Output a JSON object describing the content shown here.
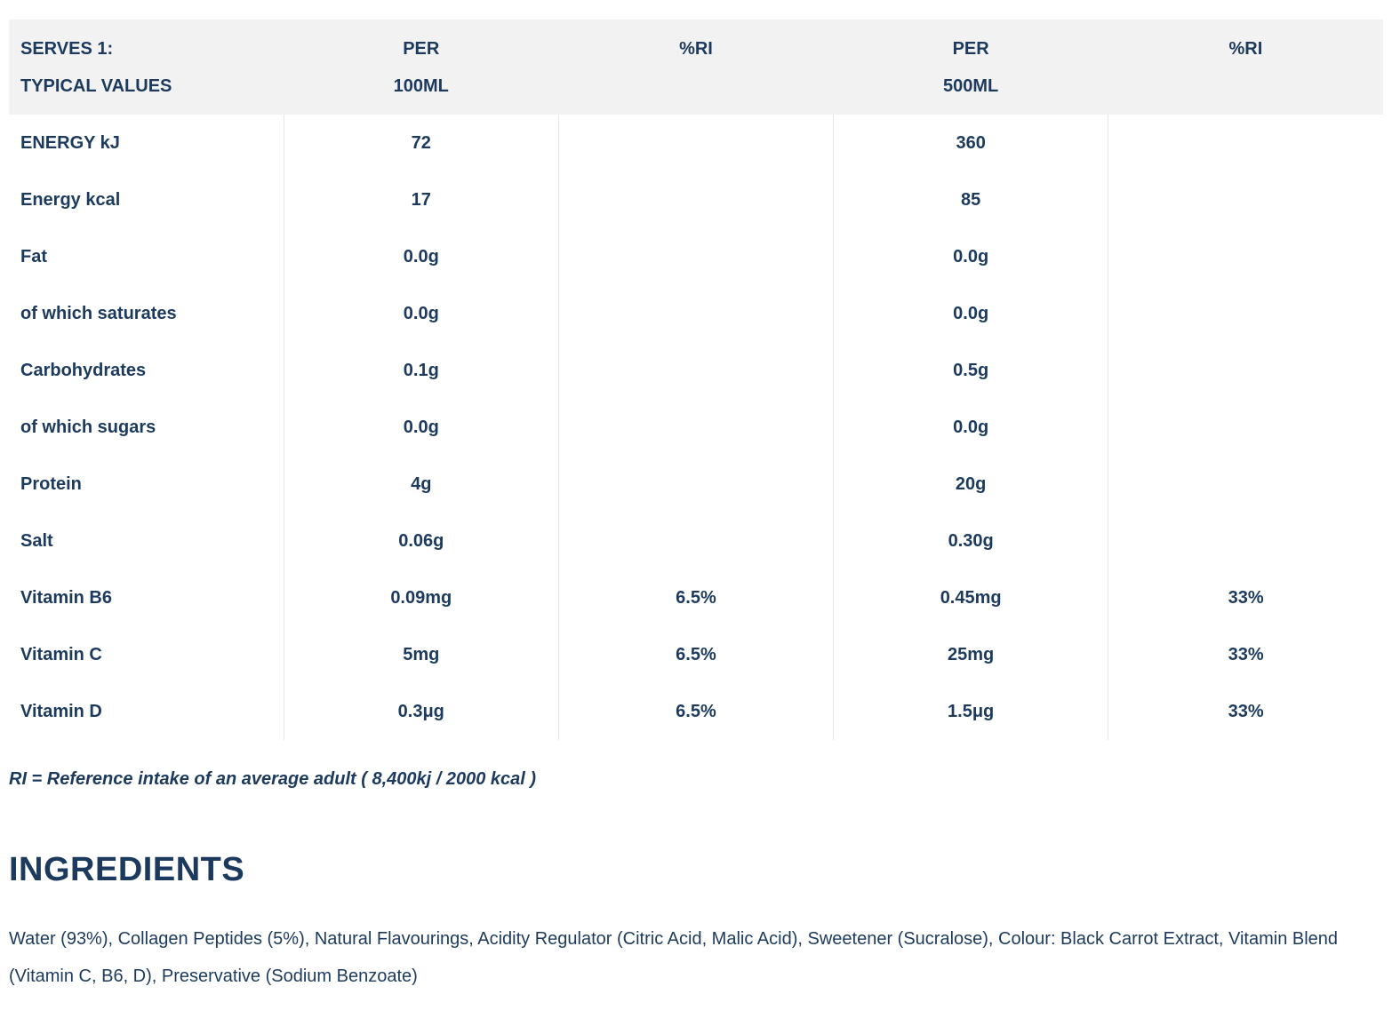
{
  "table": {
    "header": [
      {
        "line1": "SERVES 1:",
        "line2": "TYPICAL VALUES"
      },
      {
        "line1": "PER",
        "line2": "100ML"
      },
      {
        "line1": "%RI",
        "line2": ""
      },
      {
        "line1": "PER",
        "line2": "500ML"
      },
      {
        "line1": "%RI",
        "line2": ""
      }
    ],
    "rows": [
      {
        "label": "ENERGY kJ",
        "per100": "72",
        "ri100": "",
        "per500": "360",
        "ri500": ""
      },
      {
        "label": "Energy kcal",
        "per100": "17",
        "ri100": "",
        "per500": "85",
        "ri500": ""
      },
      {
        "label": "Fat",
        "per100": "0.0g",
        "ri100": "",
        "per500": "0.0g",
        "ri500": ""
      },
      {
        "label": "of which saturates",
        "per100": "0.0g",
        "ri100": "",
        "per500": "0.0g",
        "ri500": ""
      },
      {
        "label": "Carbohydrates",
        "per100": "0.1g",
        "ri100": "",
        "per500": "0.5g",
        "ri500": ""
      },
      {
        "label": "of which sugars",
        "per100": "0.0g",
        "ri100": "",
        "per500": "0.0g",
        "ri500": ""
      },
      {
        "label": "Protein",
        "per100": "4g",
        "ri100": "",
        "per500": "20g",
        "ri500": ""
      },
      {
        "label": "Salt",
        "per100": "0.06g",
        "ri100": "",
        "per500": "0.30g",
        "ri500": ""
      },
      {
        "label": "Vitamin B6",
        "per100": "0.09mg",
        "ri100": "6.5%",
        "per500": "0.45mg",
        "ri500": "33%"
      },
      {
        "label": "Vitamin C",
        "per100": "5mg",
        "ri100": "6.5%",
        "per500": "25mg",
        "ri500": "33%"
      },
      {
        "label": "Vitamin D",
        "per100": "0.3μg",
        "ri100": "6.5%",
        "per500": "1.5μg",
        "ri500": "33%"
      }
    ]
  },
  "ri_note": "RI = Reference intake of an average adult ( 8,400kj / 2000 kcal )",
  "ingredients": {
    "heading": "INGREDIENTS",
    "text": "Water (93%), Collagen Peptides (5%), Natural Flavourings, Acidity Regulator (Citric Acid, Malic Acid), Sweetener (Sucralose), Colour: Black Carrot Extract, Vitamin Blend (Vitamin C, B6, D), Preservative (Sodium Benzoate)"
  },
  "colors": {
    "text": "#1c3a5e",
    "header_background": "#f2f2f2",
    "divider": "#e6e6e6"
  }
}
